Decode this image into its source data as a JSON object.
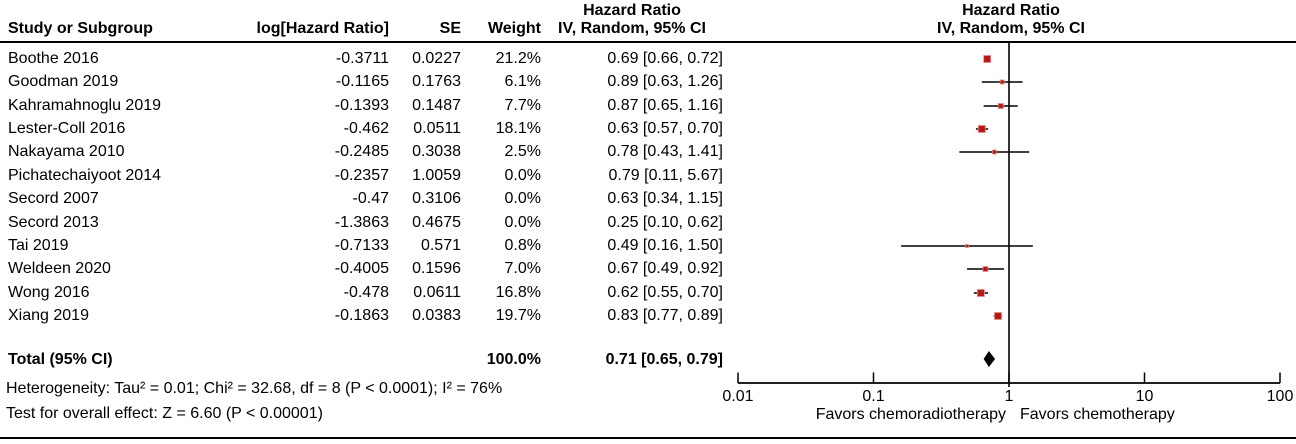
{
  "chart_data": {
    "type": "forest",
    "x_scale": "log10",
    "xlim": [
      0.01,
      100
    ],
    "x_ticks": [
      "0.01",
      "0.1",
      "1",
      "10",
      "100"
    ],
    "x_tick_values": [
      0.01,
      0.1,
      1,
      10,
      100
    ],
    "effect_header": "Hazard Ratio",
    "method_header": "IV, Random, 95% CI",
    "columns": {
      "study": "Study or Subgroup",
      "log_hr": "log[Hazard Ratio]",
      "se": "SE",
      "weight": "Weight"
    },
    "studies": [
      {
        "name": "Boothe 2016",
        "log_hr": "-0.3711",
        "se": "0.0227",
        "weight": "21.2%",
        "weight_pct": 21.2,
        "hr": 0.69,
        "ci_low": 0.66,
        "ci_high": 0.72,
        "ci_text": "0.69 [0.66, 0.72]"
      },
      {
        "name": "Goodman 2019",
        "log_hr": "-0.1165",
        "se": "0.1763",
        "weight": "6.1%",
        "weight_pct": 6.1,
        "hr": 0.89,
        "ci_low": 0.63,
        "ci_high": 1.26,
        "ci_text": "0.89 [0.63, 1.26]"
      },
      {
        "name": "Kahramahnoglu 2019",
        "log_hr": "-0.1393",
        "se": "0.1487",
        "weight": "7.7%",
        "weight_pct": 7.7,
        "hr": 0.87,
        "ci_low": 0.65,
        "ci_high": 1.16,
        "ci_text": "0.87 [0.65, 1.16]"
      },
      {
        "name": "Lester-Coll 2016",
        "log_hr": "-0.462",
        "se": "0.0511",
        "weight": "18.1%",
        "weight_pct": 18.1,
        "hr": 0.63,
        "ci_low": 0.57,
        "ci_high": 0.7,
        "ci_text": "0.63 [0.57, 0.70]"
      },
      {
        "name": "Nakayama 2010",
        "log_hr": "-0.2485",
        "se": "0.3038",
        "weight": "2.5%",
        "weight_pct": 2.5,
        "hr": 0.78,
        "ci_low": 0.43,
        "ci_high": 1.41,
        "ci_text": "0.78 [0.43, 1.41]"
      },
      {
        "name": "Pichatechaiyoot 2014",
        "log_hr": "-0.2357",
        "se": "1.0059",
        "weight": "0.0%",
        "weight_pct": 0,
        "hr": 0.79,
        "ci_low": 0.11,
        "ci_high": 5.67,
        "ci_text": "0.79 [0.11, 5.67]"
      },
      {
        "name": "Secord 2007",
        "log_hr": "-0.47",
        "se": "0.3106",
        "weight": "0.0%",
        "weight_pct": 0,
        "hr": 0.63,
        "ci_low": 0.34,
        "ci_high": 1.15,
        "ci_text": "0.63 [0.34, 1.15]"
      },
      {
        "name": "Secord 2013",
        "log_hr": "-1.3863",
        "se": "0.4675",
        "weight": "0.0%",
        "weight_pct": 0,
        "hr": 0.25,
        "ci_low": 0.1,
        "ci_high": 0.62,
        "ci_text": "0.25 [0.10, 0.62]"
      },
      {
        "name": "Tai 2019",
        "log_hr": "-0.7133",
        "se": "0.571",
        "weight": "0.8%",
        "weight_pct": 0.8,
        "hr": 0.49,
        "ci_low": 0.16,
        "ci_high": 1.5,
        "ci_text": "0.49 [0.16, 1.50]"
      },
      {
        "name": "Weldeen 2020",
        "log_hr": "-0.4005",
        "se": "0.1596",
        "weight": "7.0%",
        "weight_pct": 7.0,
        "hr": 0.67,
        "ci_low": 0.49,
        "ci_high": 0.92,
        "ci_text": "0.67 [0.49, 0.92]"
      },
      {
        "name": "Wong 2016",
        "log_hr": "-0.478",
        "se": "0.0611",
        "weight": "16.8%",
        "weight_pct": 16.8,
        "hr": 0.62,
        "ci_low": 0.55,
        "ci_high": 0.7,
        "ci_text": "0.62 [0.55, 0.70]"
      },
      {
        "name": "Xiang 2019",
        "log_hr": "-0.1863",
        "se": "0.0383",
        "weight": "19.7%",
        "weight_pct": 19.7,
        "hr": 0.83,
        "ci_low": 0.77,
        "ci_high": 0.89,
        "ci_text": "0.83 [0.77, 0.89]"
      }
    ],
    "total": {
      "label": "Total (95% CI)",
      "weight": "100.0%",
      "hr": 0.71,
      "ci_low": 0.65,
      "ci_high": 0.79,
      "ci_text": "0.71 [0.65, 0.79]"
    },
    "heterogeneity_text": "Heterogeneity: Tau² = 0.01; Chi² = 32.68, df = 8 (P < 0.0001); I² = 76%",
    "overall_effect_text": "Test for overall effect: Z = 6.60 (P < 0.00001)",
    "favors_left": "Favors chemoradiotherapy",
    "favors_right": "Favors chemotherapy",
    "marker_color": "#b81916",
    "marker_edge_color": "#e08f8c",
    "line_color": "#000000"
  }
}
